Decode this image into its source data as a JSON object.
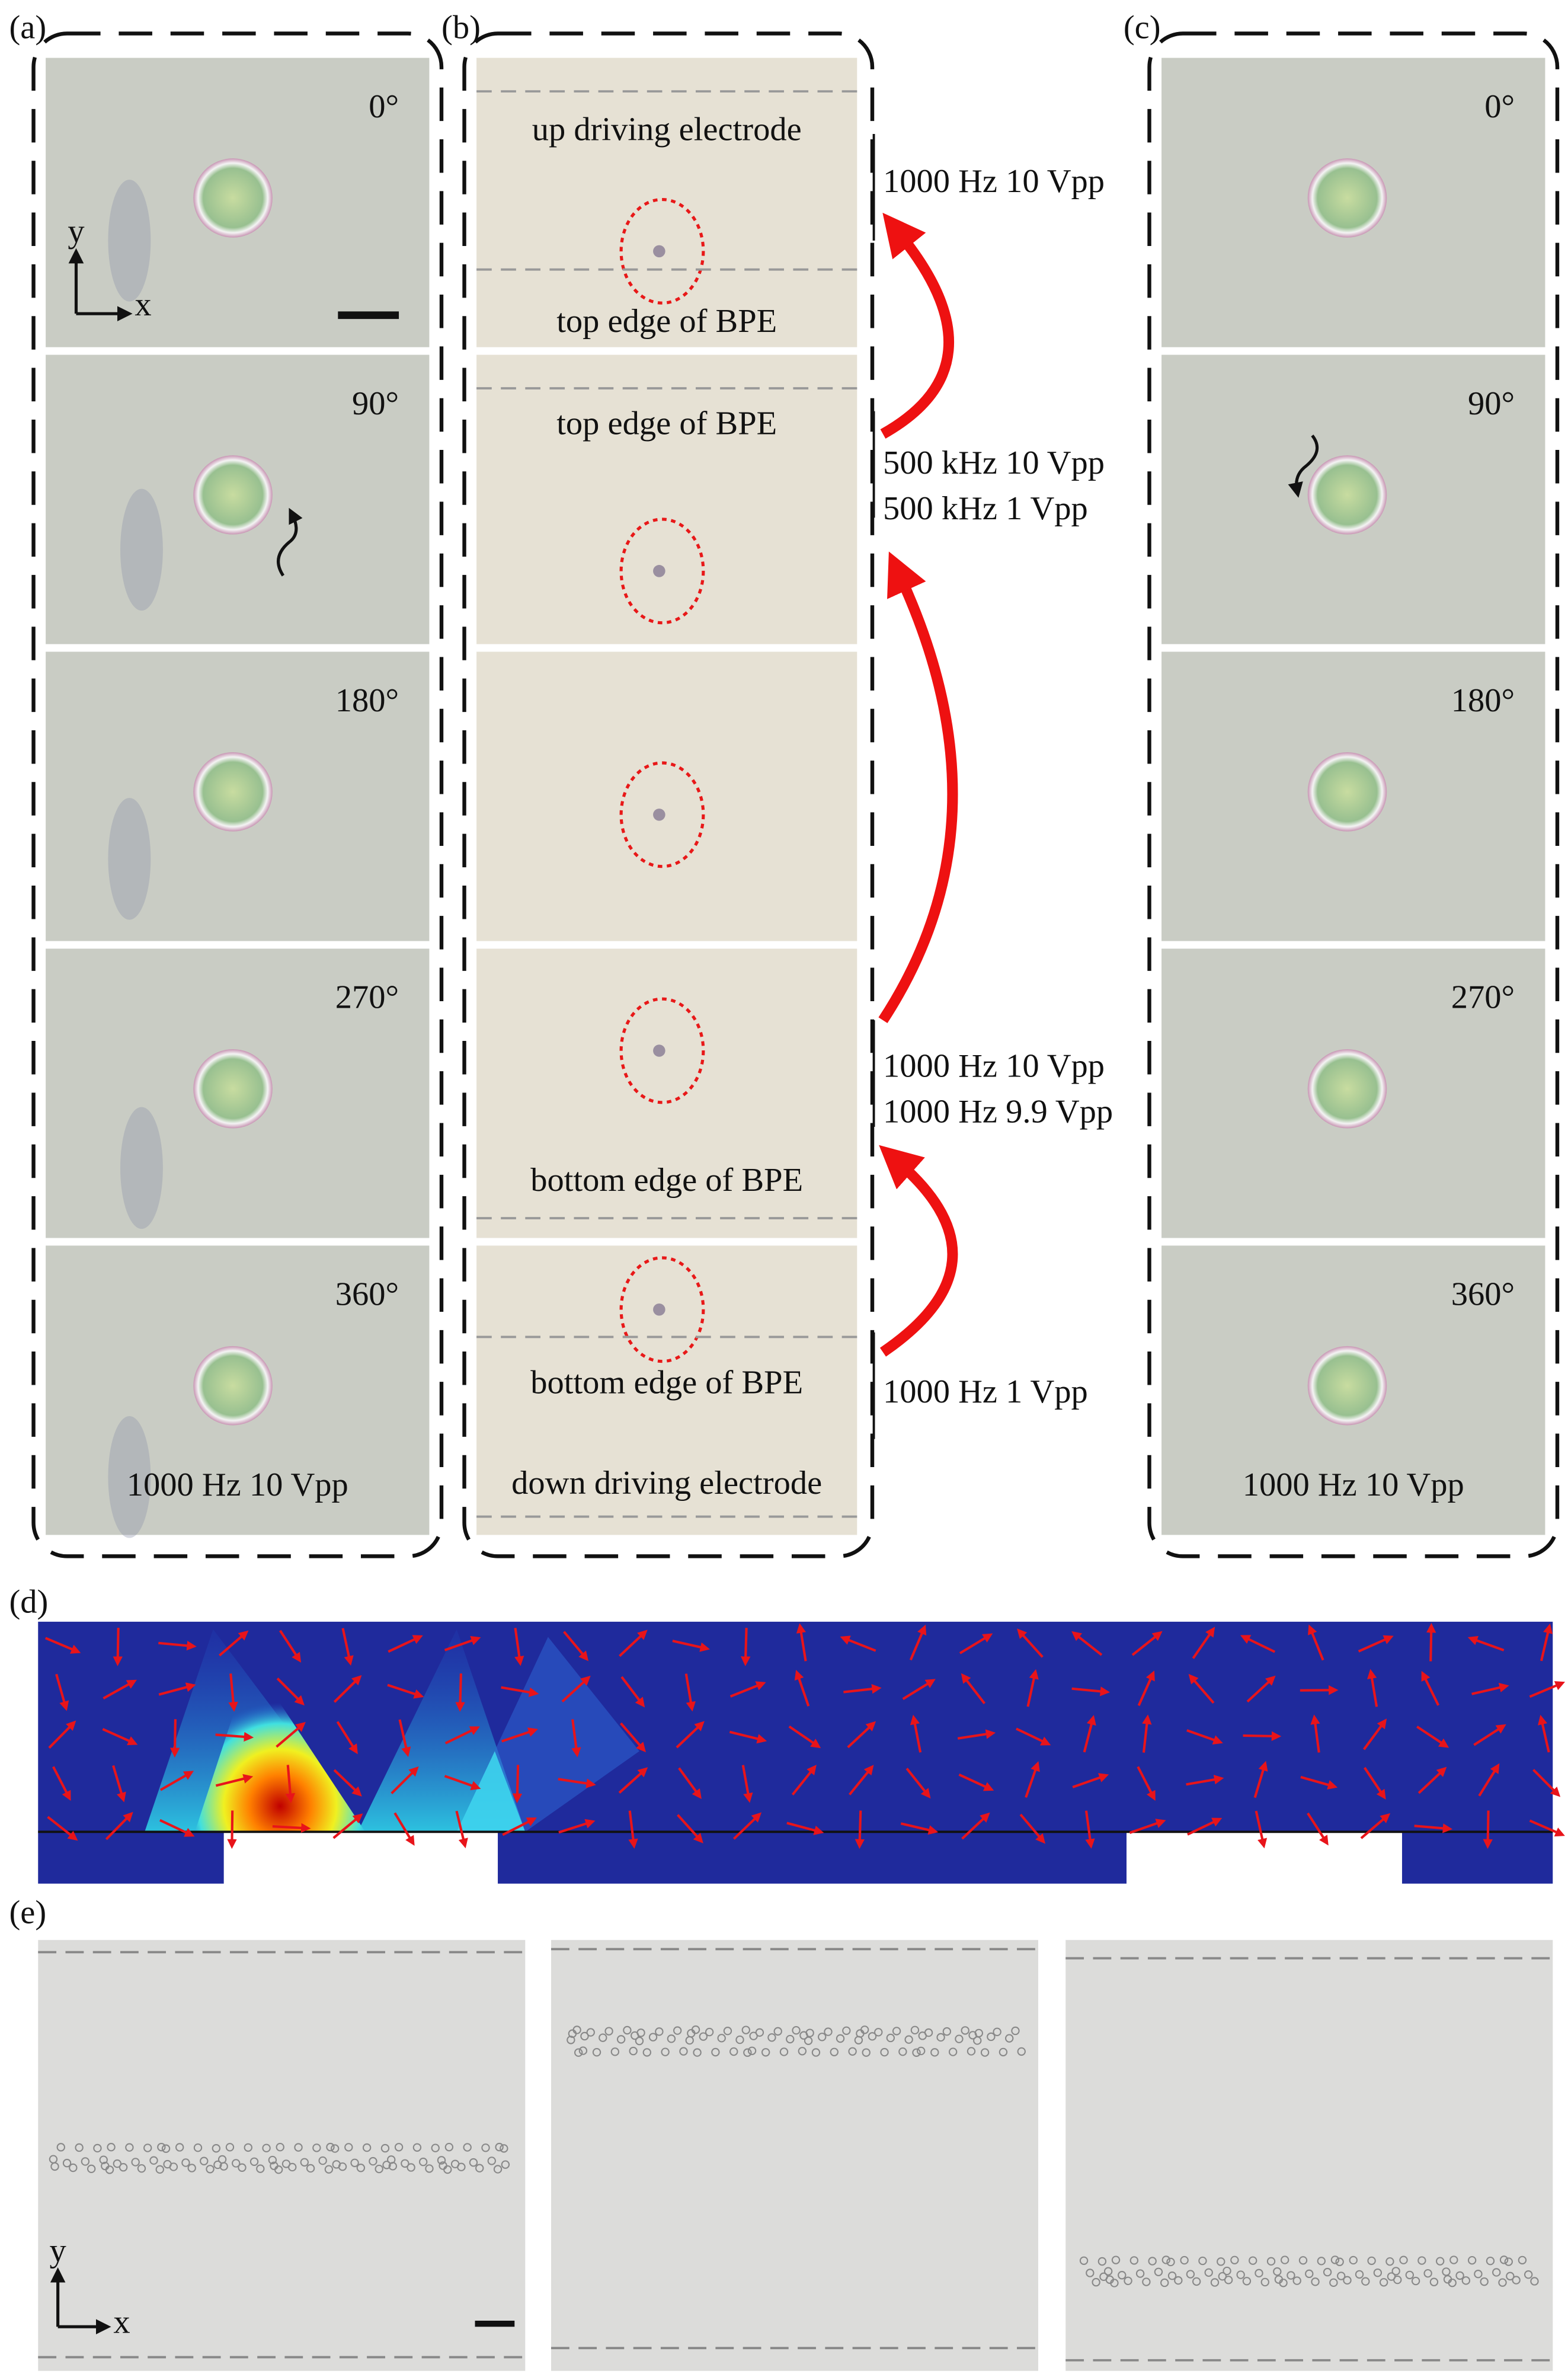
{
  "panel_a": {
    "label": "(a)",
    "angles": [
      "0°",
      "90°",
      "180°",
      "270°",
      "360°"
    ],
    "axis_y": "y",
    "axis_x": "x",
    "condition": "1000 Hz 10 Vpp"
  },
  "panel_b": {
    "label": "(b)",
    "frame_labels": [
      "up driving electrode",
      "top edge of BPE",
      "top edge of BPE",
      "bottom edge of BPE",
      "bottom edge of BPE",
      "down driving electrode"
    ]
  },
  "transitions": [
    "1000 Hz 10 Vpp",
    "500 kHz 10 Vpp",
    "500 kHz 1 Vpp",
    "1000 Hz 10 Vpp",
    "1000 Hz 9.9 Vpp",
    "1000 Hz 1 Vpp"
  ],
  "panel_c": {
    "label": "(c)",
    "angles": [
      "0°",
      "90°",
      "180°",
      "270°",
      "360°"
    ],
    "condition": "1000 Hz 10 Vpp"
  },
  "panel_d": {
    "label": "(d)"
  },
  "panel_e": {
    "label": "(e)",
    "axis_y": "y",
    "axis_x": "x"
  }
}
